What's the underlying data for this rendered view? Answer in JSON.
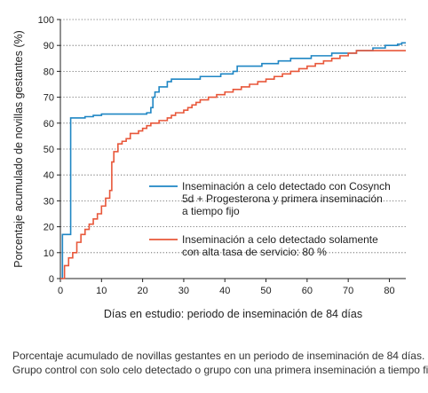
{
  "chart_data": {
    "type": "line",
    "step": true,
    "xlabel": "Días en estudio: periodo de inseminación de 84 días",
    "ylabel": "Porcentaje acumulado de novillas gestantes (%)",
    "xlim": [
      0,
      84
    ],
    "ylim": [
      0,
      100
    ],
    "xticks": [
      0,
      10,
      20,
      30,
      40,
      50,
      60,
      70,
      80
    ],
    "yticks": [
      0,
      10,
      20,
      30,
      40,
      50,
      60,
      70,
      80,
      90,
      100
    ],
    "grid": "horizontal dotted",
    "legend_position": "right",
    "series": [
      {
        "name_lines": [
          "Inseminación a celo detectado con Cosynch",
          "5d + Progesterona y primera inseminación",
          "a tiempo fijo"
        ],
        "color": "#1f86c4",
        "points": [
          [
            0,
            0
          ],
          [
            0.5,
            17
          ],
          [
            2,
            17
          ],
          [
            2.5,
            62
          ],
          [
            5,
            62
          ],
          [
            6,
            62.5
          ],
          [
            8,
            63
          ],
          [
            10,
            63.5
          ],
          [
            19,
            63.5
          ],
          [
            21,
            64
          ],
          [
            22,
            66
          ],
          [
            22.5,
            70
          ],
          [
            23,
            72
          ],
          [
            24,
            74
          ],
          [
            25,
            74
          ],
          [
            26,
            76
          ],
          [
            27,
            77
          ],
          [
            33,
            77
          ],
          [
            34,
            78
          ],
          [
            38,
            78
          ],
          [
            39,
            79
          ],
          [
            42,
            80
          ],
          [
            43,
            82
          ],
          [
            48,
            82
          ],
          [
            49,
            83
          ],
          [
            52,
            83
          ],
          [
            53,
            84
          ],
          [
            55,
            84
          ],
          [
            56,
            85
          ],
          [
            60,
            85
          ],
          [
            61,
            86
          ],
          [
            65,
            86
          ],
          [
            66,
            87
          ],
          [
            71,
            87
          ],
          [
            72,
            88
          ],
          [
            75,
            88
          ],
          [
            76,
            89
          ],
          [
            78,
            89
          ],
          [
            79,
            90
          ],
          [
            81,
            90
          ],
          [
            82,
            90.5
          ],
          [
            83,
            91
          ],
          [
            84,
            91
          ]
        ]
      },
      {
        "name_lines": [
          "Inseminación a celo detectado solamente",
          "con alta tasa de servicio: 80 %"
        ],
        "color": "#e8573a",
        "points": [
          [
            0,
            0
          ],
          [
            1,
            5
          ],
          [
            2,
            8
          ],
          [
            3,
            10
          ],
          [
            4,
            14
          ],
          [
            5,
            17
          ],
          [
            6,
            19
          ],
          [
            7,
            21
          ],
          [
            8,
            23
          ],
          [
            9,
            25
          ],
          [
            10,
            28
          ],
          [
            11,
            31
          ],
          [
            12,
            34
          ],
          [
            12.5,
            45
          ],
          [
            13,
            49
          ],
          [
            14,
            52
          ],
          [
            15,
            53
          ],
          [
            16,
            54
          ],
          [
            17,
            56
          ],
          [
            18,
            56
          ],
          [
            19,
            57
          ],
          [
            20,
            58
          ],
          [
            21,
            59
          ],
          [
            22,
            60
          ],
          [
            24,
            61
          ],
          [
            26,
            62
          ],
          [
            27,
            63
          ],
          [
            28,
            64
          ],
          [
            30,
            65
          ],
          [
            31,
            66
          ],
          [
            32,
            67
          ],
          [
            33,
            68
          ],
          [
            34,
            69
          ],
          [
            36,
            70
          ],
          [
            38,
            71
          ],
          [
            40,
            72
          ],
          [
            42,
            73
          ],
          [
            44,
            74
          ],
          [
            46,
            75
          ],
          [
            48,
            76
          ],
          [
            50,
            77
          ],
          [
            52,
            78
          ],
          [
            54,
            79
          ],
          [
            56,
            80
          ],
          [
            58,
            81
          ],
          [
            60,
            82
          ],
          [
            62,
            83
          ],
          [
            64,
            84
          ],
          [
            66,
            85
          ],
          [
            68,
            86
          ],
          [
            70,
            87
          ],
          [
            72,
            88
          ],
          [
            76,
            88
          ],
          [
            84,
            88
          ]
        ]
      }
    ]
  },
  "caption": {
    "line1": "Porcentaje acumulado de novillas gestantes en un periodo de inseminación de 84 días.",
    "line2": "Grupo control con solo celo detectado o grupo con una primera inseminación a tiempo fijo."
  }
}
